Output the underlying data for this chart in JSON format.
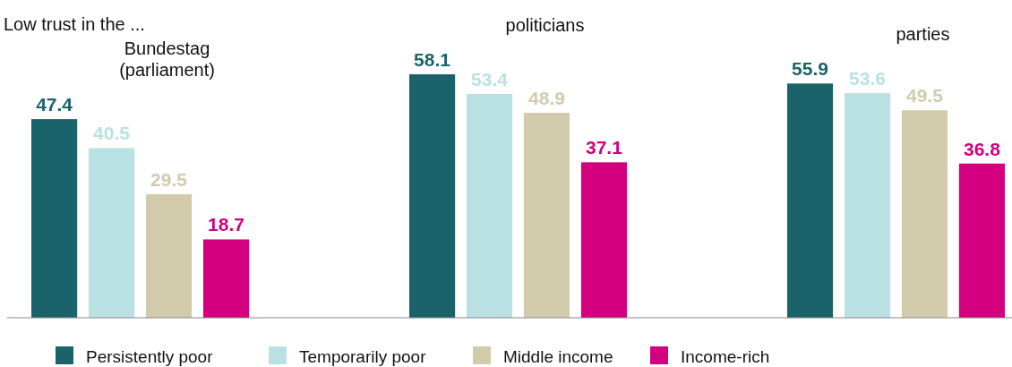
{
  "chart_data": {
    "type": "bar",
    "title": "Low trust in the ...",
    "categories": [
      "Bundestag (parliament)",
      "politicians",
      "parties"
    ],
    "series": [
      {
        "name": "Persistently poor",
        "color": "#1a636b",
        "values": [
          47.4,
          58.1,
          55.9
        ]
      },
      {
        "name": "Temporarily poor",
        "color": "#b9e1e3",
        "values": [
          40.5,
          53.4,
          53.6
        ]
      },
      {
        "name": "Middle income",
        "color": "#d1cbab",
        "values": [
          29.5,
          48.9,
          49.5
        ]
      },
      {
        "name": "Income-rich",
        "color": "#d4007f",
        "values": [
          18.7,
          37.1,
          36.8
        ]
      }
    ],
    "data_labels": true,
    "legend": "bottom",
    "relative": false
  }
}
